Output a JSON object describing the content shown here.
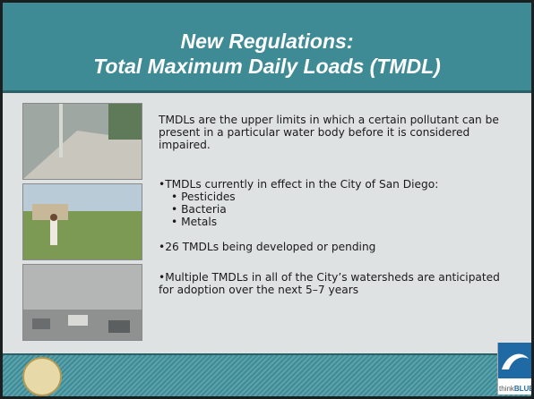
{
  "title": [
    "New Regulations:",
    "Total Maximum Daily Loads (TMDL)"
  ],
  "body": {
    "intro": "TMDLs are the upper limits in which a certain pollutant can be present in a particular water body before it is considered impaired.",
    "bullets": [
      {
        "text": "•TMDLs currently in effect in the City of San Diego:",
        "sub": [
          "• Pesticides",
          "• Bacteria",
          "• Metals"
        ]
      },
      {
        "text": "•26 TMDLs being developed or pending"
      },
      {
        "text": "•Multiple TMDLs in all of the City’s watersheds are anticipated for adoption over the next 5–7 years"
      }
    ]
  },
  "logo": {
    "think": "think",
    "blue": "BLUE"
  }
}
